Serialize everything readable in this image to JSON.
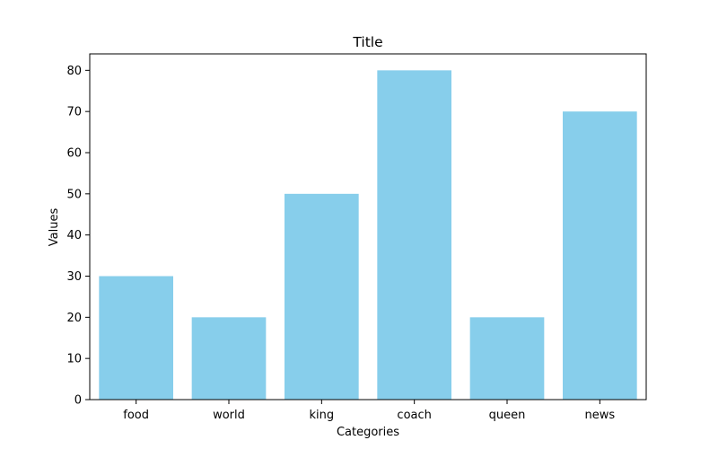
{
  "chart_data": {
    "type": "bar",
    "title": "Title",
    "xlabel": "Categories",
    "ylabel": "Values",
    "categories": [
      "food",
      "world",
      "king",
      "coach",
      "queen",
      "news"
    ],
    "values": [
      30,
      20,
      50,
      80,
      20,
      70
    ],
    "ylim": [
      0,
      84
    ],
    "yticks": [
      0,
      10,
      20,
      30,
      40,
      50,
      60,
      70,
      80
    ],
    "bar_color": "#87CEEB",
    "grid": false,
    "legend": "none"
  }
}
